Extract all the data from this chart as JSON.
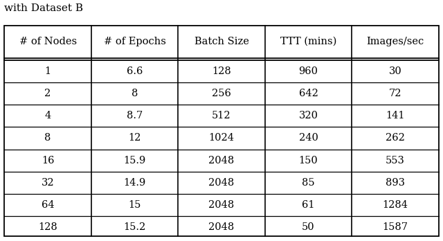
{
  "title": "with Dataset B",
  "headers": [
    "# of Nodes",
    "# of Epochs",
    "Batch Size",
    "TTT (mins)",
    "Images/sec"
  ],
  "rows": [
    [
      "1",
      "6.6",
      "128",
      "960",
      "30"
    ],
    [
      "2",
      "8",
      "256",
      "642",
      "72"
    ],
    [
      "4",
      "8.7",
      "512",
      "320",
      "141"
    ],
    [
      "8",
      "12",
      "1024",
      "240",
      "262"
    ],
    [
      "16",
      "15.9",
      "2048",
      "150",
      "553"
    ],
    [
      "32",
      "14.9",
      "2048",
      "85",
      "893"
    ],
    [
      "64",
      "15",
      "2048",
      "61",
      "1284"
    ],
    [
      "128",
      "15.2",
      "2048",
      "50",
      "1587"
    ]
  ],
  "background_color": "#ffffff",
  "text_color": "#000000",
  "border_color": "#000000",
  "header_fontsize": 10.5,
  "cell_fontsize": 10.5,
  "title_fontsize": 11
}
